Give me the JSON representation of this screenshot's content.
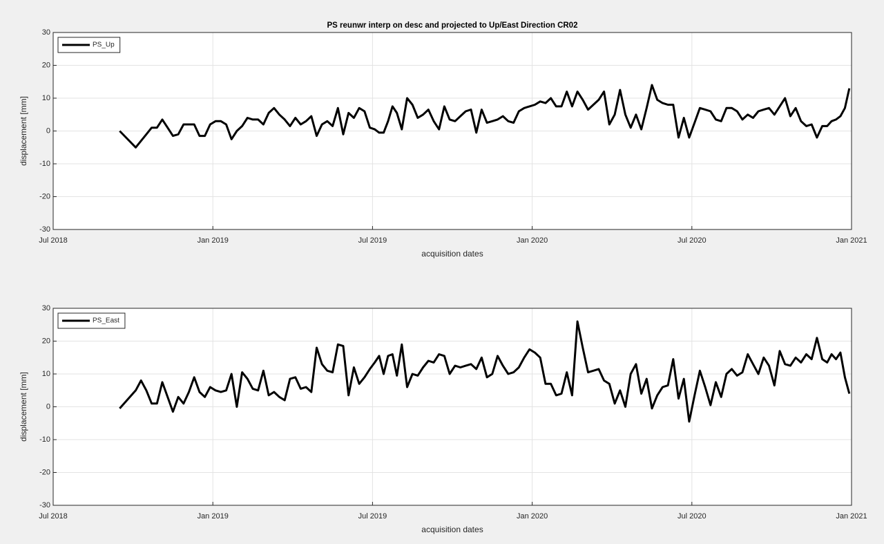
{
  "chart_data": [
    {
      "type": "line",
      "title": "PS reunwr interp on desc and projected to Up/East Direction CR02",
      "x_label": "acquisition dates",
      "y_label": "displacement [mm]",
      "x": [
        "2018-09",
        "2018-10",
        "2018-10",
        "2018-10",
        "2018-10",
        "2018-10",
        "2018-11",
        "2018-11",
        "2018-11",
        "2018-11",
        "2018-11",
        "2018-12",
        "2018-12",
        "2018-12",
        "2018-12",
        "2018-12",
        "2019-01",
        "2019-01",
        "2019-01",
        "2019-01",
        "2019-01",
        "2019-02",
        "2019-02",
        "2019-02",
        "2019-02",
        "2019-02",
        "2019-03",
        "2019-03",
        "2019-03",
        "2019-03",
        "2019-03",
        "2019-04",
        "2019-04",
        "2019-04",
        "2019-04",
        "2019-04",
        "2019-05",
        "2019-05",
        "2019-05",
        "2019-05",
        "2019-05",
        "2019-06",
        "2019-06",
        "2019-06",
        "2019-06",
        "2019-06",
        "2019-07",
        "2019-07",
        "2019-07",
        "2019-07",
        "2019-07",
        "2019-07",
        "2019-08",
        "2019-08",
        "2019-08",
        "2019-08",
        "2019-08",
        "2019-09",
        "2019-09",
        "2019-09",
        "2019-09",
        "2019-09",
        "2019-10",
        "2019-10",
        "2019-10",
        "2019-10",
        "2019-10",
        "2019-11",
        "2019-11",
        "2019-11",
        "2019-11",
        "2019-11",
        "2019-12",
        "2019-12",
        "2019-12",
        "2019-12",
        "2019-12",
        "2020-01",
        "2020-01",
        "2020-01",
        "2020-01",
        "2020-01",
        "2020-02",
        "2020-02",
        "2020-02",
        "2020-02",
        "2020-02",
        "2020-03",
        "2020-03",
        "2020-03",
        "2020-03",
        "2020-03",
        "2020-04",
        "2020-04",
        "2020-04",
        "2020-04",
        "2020-04",
        "2020-05",
        "2020-05",
        "2020-05",
        "2020-05",
        "2020-05",
        "2020-06",
        "2020-06",
        "2020-06",
        "2020-06",
        "2020-06",
        "2020-07",
        "2020-07",
        "2020-07",
        "2020-07",
        "2020-07",
        "2020-08",
        "2020-08",
        "2020-08",
        "2020-08",
        "2020-08",
        "2020-09",
        "2020-09",
        "2020-09",
        "2020-09",
        "2020-09",
        "2020-10",
        "2020-10",
        "2020-10",
        "2020-10",
        "2020-10",
        "2020-11",
        "2020-11",
        "2020-11",
        "2020-11",
        "2020-11",
        "2020-12",
        "2020-12",
        "2020-12",
        "2020-12",
        "2020-12",
        "2020-12"
      ],
      "series": [
        {
          "name": "PS_Up",
          "color": "#000000",
          "values": [
            0,
            -5,
            -3,
            -1,
            1,
            1,
            3.5,
            1,
            -1.5,
            -1,
            2,
            2,
            2,
            -1.5,
            -1.5,
            2,
            3,
            3,
            2,
            -2.5,
            0,
            1.5,
            4,
            3.5,
            3.5,
            2,
            5.5,
            7,
            5,
            3.5,
            1.5,
            4,
            2,
            3,
            4.5,
            -1.5,
            2,
            3,
            1.5,
            7,
            -1,
            5.5,
            4,
            7,
            6,
            1,
            0.5,
            -0.5,
            -0.5,
            3,
            7.5,
            5.5,
            0.5,
            10,
            8,
            4,
            5,
            6.5,
            3,
            0.5,
            7.5,
            3.5,
            3,
            4.5,
            6,
            6.5,
            -0.5,
            6.5,
            2.5,
            3,
            3.5,
            4.5,
            3,
            2.5,
            6,
            7,
            7.5,
            8,
            9,
            8.5,
            10,
            7.5,
            7.5,
            12,
            7.5,
            12,
            9.5,
            6.5,
            8,
            9.5,
            12,
            2,
            5,
            12.5,
            5,
            1,
            5,
            0.5,
            7,
            14,
            9.5,
            8.5,
            8,
            8,
            -2,
            4,
            -2,
            2.5,
            7,
            6.5,
            6,
            3.5,
            3,
            7,
            7,
            6,
            3.5,
            5,
            4,
            6,
            6.5,
            7,
            5,
            7.5,
            10,
            4.5,
            7,
            3,
            1.5,
            2,
            -2,
            1.5,
            1.5,
            3,
            3.5,
            4.5,
            7,
            13
          ]
        }
      ],
      "xlim": [
        "2018-07",
        "2021-01"
      ],
      "xticks": [
        {
          "value": "2018-07",
          "label": "Jul 2018"
        },
        {
          "value": "2019-01",
          "label": "Jan 2019"
        },
        {
          "value": "2019-07",
          "label": "Jul 2019"
        },
        {
          "value": "2020-01",
          "label": "Jan 2020"
        },
        {
          "value": "2020-07",
          "label": "Jul 2020"
        },
        {
          "value": "2021-01",
          "label": "Jan 2021"
        }
      ],
      "ylim": [
        -30,
        30
      ],
      "yticks": [
        -30,
        -20,
        -10,
        0,
        10,
        20,
        30
      ],
      "grid": true,
      "legend": "upper left"
    },
    {
      "type": "line",
      "x_label": "acquisition dates",
      "y_label": "displacement [mm]",
      "x": [
        "2018-09",
        "2018-10",
        "2018-10",
        "2018-10",
        "2018-10",
        "2018-10",
        "2018-11",
        "2018-11",
        "2018-11",
        "2018-11",
        "2018-11",
        "2018-12",
        "2018-12",
        "2018-12",
        "2018-12",
        "2018-12",
        "2019-01",
        "2019-01",
        "2019-01",
        "2019-01",
        "2019-01",
        "2019-02",
        "2019-02",
        "2019-02",
        "2019-02",
        "2019-02",
        "2019-03",
        "2019-03",
        "2019-03",
        "2019-03",
        "2019-03",
        "2019-04",
        "2019-04",
        "2019-04",
        "2019-04",
        "2019-04",
        "2019-05",
        "2019-05",
        "2019-05",
        "2019-05",
        "2019-05",
        "2019-06",
        "2019-06",
        "2019-06",
        "2019-06",
        "2019-06",
        "2019-07",
        "2019-07",
        "2019-07",
        "2019-07",
        "2019-07",
        "2019-07",
        "2019-08",
        "2019-08",
        "2019-08",
        "2019-08",
        "2019-08",
        "2019-09",
        "2019-09",
        "2019-09",
        "2019-09",
        "2019-09",
        "2019-10",
        "2019-10",
        "2019-10",
        "2019-10",
        "2019-10",
        "2019-11",
        "2019-11",
        "2019-11",
        "2019-11",
        "2019-11",
        "2019-12",
        "2019-12",
        "2019-12",
        "2019-12",
        "2019-12",
        "2020-01",
        "2020-01",
        "2020-01",
        "2020-01",
        "2020-01",
        "2020-02",
        "2020-02",
        "2020-02",
        "2020-02",
        "2020-02",
        "2020-03",
        "2020-03",
        "2020-03",
        "2020-03",
        "2020-03",
        "2020-04",
        "2020-04",
        "2020-04",
        "2020-04",
        "2020-04",
        "2020-05",
        "2020-05",
        "2020-05",
        "2020-05",
        "2020-05",
        "2020-06",
        "2020-06",
        "2020-06",
        "2020-06",
        "2020-06",
        "2020-07",
        "2020-07",
        "2020-07",
        "2020-07",
        "2020-07",
        "2020-08",
        "2020-08",
        "2020-08",
        "2020-08",
        "2020-08",
        "2020-09",
        "2020-09",
        "2020-09",
        "2020-09",
        "2020-09",
        "2020-10",
        "2020-10",
        "2020-10",
        "2020-10",
        "2020-10",
        "2020-11",
        "2020-11",
        "2020-11",
        "2020-11",
        "2020-11",
        "2020-12",
        "2020-12",
        "2020-12",
        "2020-12",
        "2020-12",
        "2020-12"
      ],
      "series": [
        {
          "name": "PS_East",
          "color": "#000000",
          "values": [
            -0.5,
            5,
            8,
            5,
            1,
            1,
            7.5,
            3,
            -1.5,
            3,
            1,
            4.5,
            9,
            4.5,
            3,
            6,
            5,
            4.5,
            5,
            10,
            0,
            10.5,
            8.5,
            5.5,
            5,
            11,
            3.5,
            4.5,
            3,
            2,
            8.5,
            9,
            5.5,
            6,
            4.5,
            18,
            13,
            11,
            10.5,
            19,
            18.5,
            3.5,
            12,
            7,
            9,
            11.5,
            13.5,
            15.5,
            10,
            15.5,
            16,
            9.5,
            19,
            6,
            10,
            9.5,
            12,
            14,
            13.5,
            16,
            15.5,
            10,
            12.5,
            12,
            12.5,
            13,
            11.5,
            15,
            9,
            10,
            15.5,
            12.5,
            10,
            10.5,
            12,
            15,
            17.5,
            16.5,
            15,
            7,
            7,
            3.5,
            4,
            10.5,
            3.5,
            26,
            18,
            10.5,
            11,
            11.5,
            8,
            7,
            1,
            5,
            0,
            10,
            13,
            4,
            8.5,
            -0.5,
            3.5,
            6,
            6.5,
            14.5,
            2.5,
            8.5,
            -4.5,
            3.5,
            11,
            6,
            0.5,
            7.5,
            3,
            10,
            11.5,
            9.5,
            10.5,
            16,
            13,
            10,
            15,
            12.5,
            6.5,
            17,
            13,
            12.5,
            15,
            13.5,
            16,
            14.5,
            21,
            14.5,
            13.5,
            16,
            14.5,
            16.5,
            9,
            4
          ]
        }
      ],
      "xlim": [
        "2018-07",
        "2021-01"
      ],
      "xticks": [
        {
          "value": "2018-07",
          "label": "Jul 2018"
        },
        {
          "value": "2019-01",
          "label": "Jan 2019"
        },
        {
          "value": "2019-07",
          "label": "Jul 2019"
        },
        {
          "value": "2020-01",
          "label": "Jan 2020"
        },
        {
          "value": "2020-07",
          "label": "Jul 2020"
        },
        {
          "value": "2021-01",
          "label": "Jan 2021"
        }
      ],
      "ylim": [
        -30,
        30
      ],
      "yticks": [
        -30,
        -20,
        -10,
        0,
        10,
        20,
        30
      ],
      "grid": true,
      "legend": "upper left"
    }
  ]
}
